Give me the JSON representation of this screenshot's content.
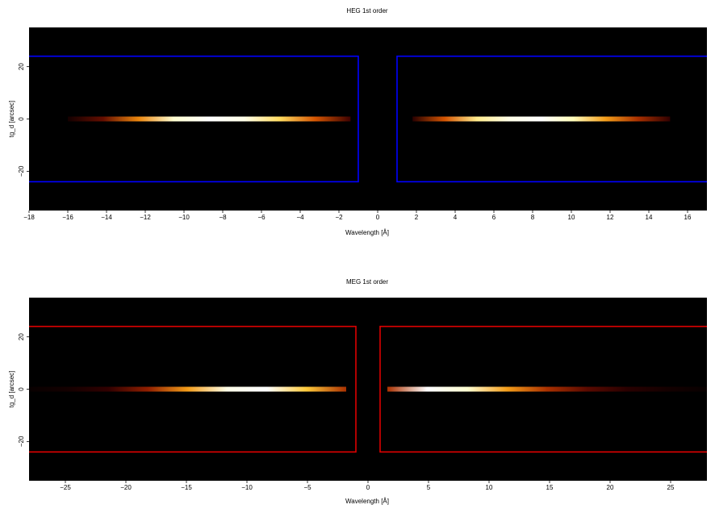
{
  "chart_data": [
    {
      "type": "heatmap",
      "title": "HEG 1st order",
      "xlabel": "Wavelength [Å]",
      "ylabel": "tg_d [arcsec]",
      "xlim": [
        -18,
        17
      ],
      "ylim": [
        -35,
        35
      ],
      "xticks": [
        -18,
        -16,
        -14,
        -12,
        -10,
        -8,
        -6,
        -4,
        -2,
        0,
        2,
        4,
        6,
        8,
        10,
        12,
        14,
        16
      ],
      "xtick_labels": [
        "−18",
        "−16",
        "−14",
        "−12",
        "−10",
        "−8",
        "−6",
        "−4",
        "−2",
        "0",
        "2",
        "4",
        "6",
        "8",
        "10",
        "12",
        "14",
        "16"
      ],
      "yticks": [
        -20,
        0,
        20
      ],
      "ytick_labels": [
        "−20",
        "0",
        "20"
      ],
      "background": "#000000",
      "colormap": [
        "#000000",
        "#3a0000",
        "#8a1a00",
        "#d04a00",
        "#f09010",
        "#ffd040",
        "#ffffc0",
        "#ffffff"
      ],
      "region_color": "#0000ff",
      "regions": [
        {
          "x": [
            -18,
            -1.0
          ],
          "y": [
            -24,
            24
          ]
        },
        {
          "x": [
            1.0,
            17
          ],
          "y": [
            -24,
            24
          ]
        }
      ],
      "streak_y": 0,
      "streaks": [
        {
          "x": [
            -16.0,
            -1.4
          ],
          "peak": -6.5,
          "intensity": [
            0.05,
            0.22,
            0.55,
            0.9,
            1.0,
            0.95,
            0.75,
            0.45,
            0.15
          ]
        },
        {
          "x": [
            1.8,
            15.1
          ],
          "peak": 7.5,
          "intensity": [
            0.1,
            0.45,
            0.8,
            0.95,
            1.0,
            0.85,
            0.6,
            0.35,
            0.12
          ]
        }
      ]
    },
    {
      "type": "heatmap",
      "title": "MEG 1st order",
      "xlabel": "Wavelength [Å]",
      "ylabel": "tg_d [arcsec]",
      "xlim": [
        -28,
        28
      ],
      "ylim": [
        -35,
        35
      ],
      "xticks": [
        -25,
        -20,
        -15,
        -10,
        -5,
        0,
        5,
        10,
        15,
        20,
        25
      ],
      "xtick_labels": [
        "−25",
        "−20",
        "−15",
        "−10",
        "−5",
        "0",
        "5",
        "10",
        "15",
        "20",
        "25"
      ],
      "yticks": [
        -20,
        0,
        20
      ],
      "ytick_labels": [
        "−20",
        "0",
        "20"
      ],
      "background": "#000000",
      "colormap": [
        "#000000",
        "#3a0000",
        "#8a1a00",
        "#d04a00",
        "#f09010",
        "#ffd040",
        "#ffffc0",
        "#ffffff"
      ],
      "region_color": "#dd0000",
      "regions": [
        {
          "x": [
            -28,
            -1.0
          ],
          "y": [
            -24,
            24
          ]
        },
        {
          "x": [
            1.0,
            28
          ],
          "y": [
            -24,
            24
          ]
        }
      ],
      "streak_y": 0,
      "streaks": [
        {
          "x": [
            -28,
            -1.8
          ],
          "peak": -8.0,
          "intensity": [
            0.02,
            0.05,
            0.12,
            0.3,
            0.6,
            0.95,
            1.0,
            0.7,
            0.35
          ]
        },
        {
          "x": [
            1.6,
            28
          ],
          "peak": 7.0,
          "intensity": [
            0.35,
            1.0,
            0.9,
            0.6,
            0.35,
            0.2,
            0.1,
            0.05,
            0.02
          ]
        }
      ]
    }
  ]
}
